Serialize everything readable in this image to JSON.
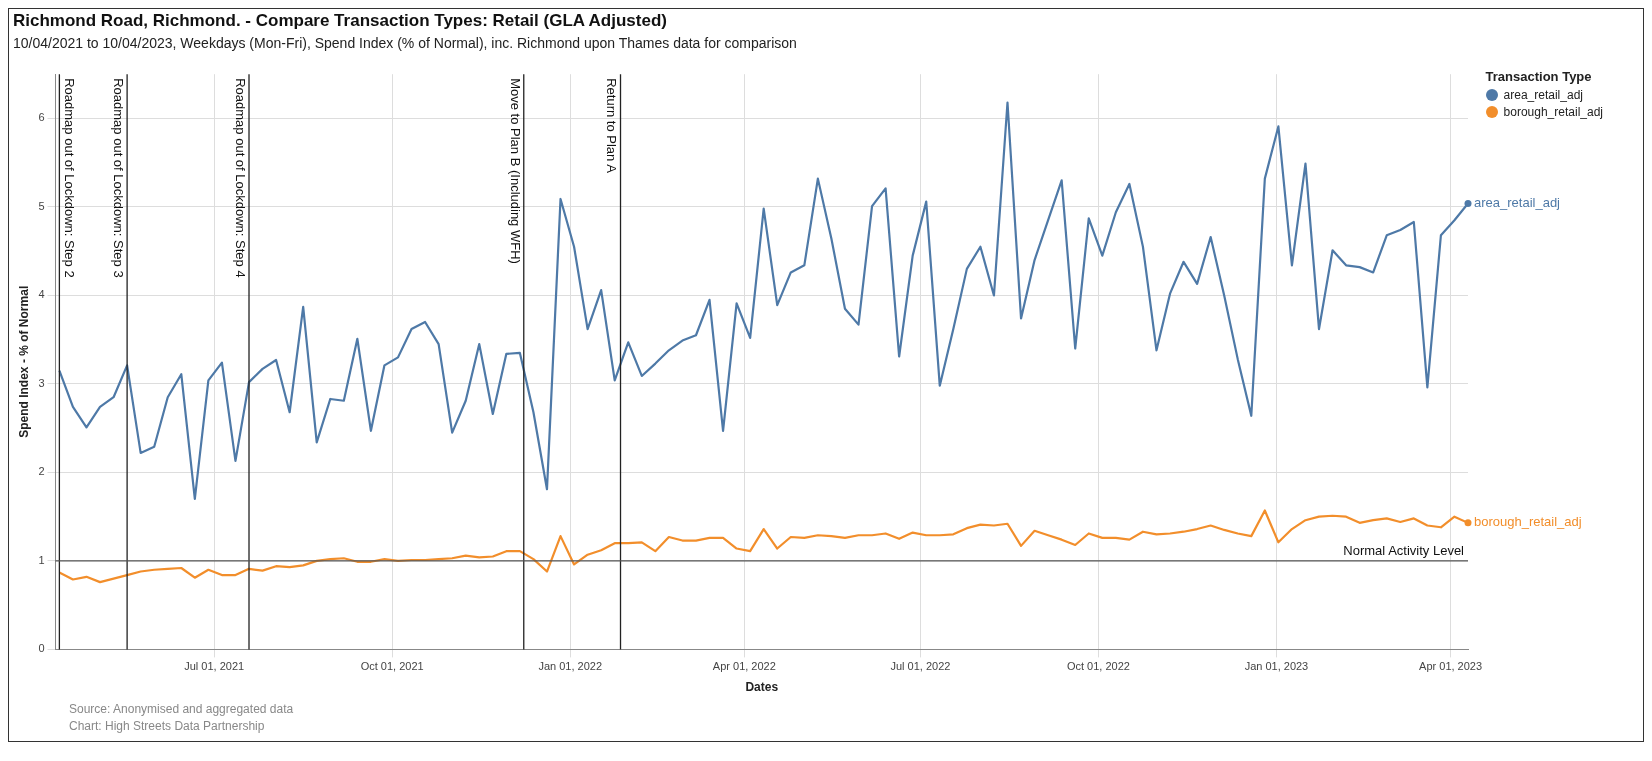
{
  "chart_data": {
    "type": "line",
    "title": "Richmond Road, Richmond. - Compare Transaction Types: Retail (GLA Adjusted)",
    "subtitle": "10/04/2021 to 10/04/2023, Weekdays (Mon-Fri), Spend Index (% of Normal), inc. Richmond upon Thames data for comparison",
    "xlabel": "Dates",
    "ylabel": "Spend Index - % of Normal",
    "legend_title": "Transaction Type",
    "annotations": [
      "Source: Anonymised and aggregated data",
      "Chart: High Streets Data Partnership"
    ],
    "x": [
      "2021-04-12",
      "2021-04-19",
      "2021-04-26",
      "2021-05-03",
      "2021-05-10",
      "2021-05-17",
      "2021-05-24",
      "2021-05-31",
      "2021-06-07",
      "2021-06-14",
      "2021-06-21",
      "2021-06-28",
      "2021-07-05",
      "2021-07-12",
      "2021-07-19",
      "2021-07-26",
      "2021-08-02",
      "2021-08-09",
      "2021-08-16",
      "2021-08-23",
      "2021-08-30",
      "2021-09-06",
      "2021-09-13",
      "2021-09-20",
      "2021-09-27",
      "2021-10-04",
      "2021-10-11",
      "2021-10-18",
      "2021-10-25",
      "2021-11-01",
      "2021-11-08",
      "2021-11-15",
      "2021-11-22",
      "2021-11-29",
      "2021-12-06",
      "2021-12-13",
      "2021-12-20",
      "2021-12-27",
      "2022-01-03",
      "2022-01-10",
      "2022-01-17",
      "2022-01-24",
      "2022-01-31",
      "2022-02-07",
      "2022-02-14",
      "2022-02-21",
      "2022-02-28",
      "2022-03-07",
      "2022-03-14",
      "2022-03-21",
      "2022-03-28",
      "2022-04-04",
      "2022-04-11",
      "2022-04-18",
      "2022-04-25",
      "2022-05-02",
      "2022-05-09",
      "2022-05-16",
      "2022-05-23",
      "2022-05-30",
      "2022-06-06",
      "2022-06-13",
      "2022-06-20",
      "2022-06-27",
      "2022-07-04",
      "2022-07-11",
      "2022-07-18",
      "2022-07-25",
      "2022-08-01",
      "2022-08-08",
      "2022-08-15",
      "2022-08-22",
      "2022-08-29",
      "2022-09-05",
      "2022-09-12",
      "2022-09-19",
      "2022-09-26",
      "2022-10-03",
      "2022-10-10",
      "2022-10-17",
      "2022-10-24",
      "2022-10-31",
      "2022-11-07",
      "2022-11-14",
      "2022-11-21",
      "2022-11-28",
      "2022-12-05",
      "2022-12-12",
      "2022-12-19",
      "2022-12-26",
      "2023-01-02",
      "2023-01-09",
      "2023-01-16",
      "2023-01-23",
      "2023-01-30",
      "2023-02-06",
      "2023-02-13",
      "2023-02-20",
      "2023-02-27",
      "2023-03-06",
      "2023-03-13",
      "2023-03-20",
      "2023-03-27",
      "2023-04-03",
      "2023-04-10"
    ],
    "series": [
      {
        "name": "area_retail_adj",
        "color": "#4e79a7",
        "values": [
          3.15,
          2.74,
          2.51,
          2.74,
          2.85,
          3.21,
          2.22,
          2.29,
          2.85,
          3.11,
          1.7,
          3.04,
          3.24,
          2.13,
          3.02,
          3.17,
          3.27,
          2.68,
          3.87,
          2.34,
          2.83,
          2.81,
          3.51,
          2.47,
          3.21,
          3.3,
          3.62,
          3.7,
          3.45,
          2.45,
          2.81,
          3.45,
          2.66,
          3.34,
          3.35,
          2.68,
          1.81,
          5.09,
          4.55,
          3.62,
          4.06,
          3.04,
          3.47,
          3.09,
          3.23,
          3.38,
          3.49,
          3.55,
          3.95,
          2.47,
          3.91,
          3.52,
          4.98,
          3.89,
          4.26,
          4.34,
          5.32,
          4.64,
          3.85,
          3.67,
          5.01,
          5.21,
          3.31,
          4.45,
          5.06,
          2.98,
          3.62,
          4.3,
          4.55,
          4.0,
          6.18,
          3.74,
          4.4,
          4.85,
          5.3,
          3.4,
          4.87,
          4.45,
          4.94,
          5.26,
          4.55,
          3.38,
          4.02,
          4.38,
          4.13,
          4.66,
          4.0,
          3.28,
          2.64,
          5.32,
          5.91,
          4.34,
          5.49,
          3.62,
          4.51,
          4.34,
          4.32,
          4.26,
          4.68,
          4.74,
          4.83,
          2.96,
          4.68,
          4.85,
          5.04
        ]
      },
      {
        "name": "borough_retail_adj",
        "color": "#f28e2b",
        "values": [
          0.87,
          0.79,
          0.82,
          0.76,
          0.8,
          0.84,
          0.88,
          0.9,
          0.91,
          0.92,
          0.81,
          0.9,
          0.84,
          0.84,
          0.91,
          0.89,
          0.94,
          0.93,
          0.95,
          1.0,
          1.02,
          1.03,
          0.99,
          0.99,
          1.02,
          1.0,
          1.01,
          1.01,
          1.02,
          1.03,
          1.06,
          1.04,
          1.05,
          1.11,
          1.11,
          1.02,
          0.88,
          1.28,
          0.96,
          1.07,
          1.12,
          1.2,
          1.2,
          1.21,
          1.11,
          1.27,
          1.23,
          1.23,
          1.26,
          1.26,
          1.14,
          1.11,
          1.36,
          1.14,
          1.27,
          1.26,
          1.29,
          1.28,
          1.26,
          1.29,
          1.29,
          1.31,
          1.25,
          1.32,
          1.29,
          1.29,
          1.3,
          1.37,
          1.41,
          1.4,
          1.42,
          1.17,
          1.34,
          1.29,
          1.24,
          1.18,
          1.31,
          1.26,
          1.26,
          1.24,
          1.33,
          1.3,
          1.31,
          1.33,
          1.36,
          1.4,
          1.35,
          1.31,
          1.28,
          1.57,
          1.21,
          1.36,
          1.46,
          1.5,
          1.51,
          1.5,
          1.43,
          1.46,
          1.48,
          1.44,
          1.48,
          1.4,
          1.38,
          1.5,
          1.43
        ]
      }
    ],
    "xlim": [
      "2021-04-10",
      "2023-04-10"
    ],
    "xticks": [
      {
        "value": "2021-07-01",
        "label": "Jul 01, 2021"
      },
      {
        "value": "2021-10-01",
        "label": "Oct 01, 2021"
      },
      {
        "value": "2022-01-01",
        "label": "Jan 01, 2022"
      },
      {
        "value": "2022-04-01",
        "label": "Apr 01, 2022"
      },
      {
        "value": "2022-07-01",
        "label": "Jul 01, 2022"
      },
      {
        "value": "2022-10-01",
        "label": "Oct 01, 2022"
      },
      {
        "value": "2023-01-01",
        "label": "Jan 01, 2023"
      },
      {
        "value": "2023-04-01",
        "label": "Apr 01, 2023"
      }
    ],
    "ylim": [
      0,
      6.5
    ],
    "yticks": [
      0,
      1,
      2,
      3,
      4,
      5,
      6
    ],
    "ref_lines": [
      {
        "axis": "x",
        "value": "2021-04-12",
        "label": "Roadmap out of Lockdown: Step 2",
        "color": "#222222"
      },
      {
        "axis": "x",
        "value": "2021-05-17",
        "label": "Roadmap out of Lockdown: Step 3",
        "color": "#222222"
      },
      {
        "axis": "x",
        "value": "2021-07-19",
        "label": "Roadmap out of Lockdown: Step 4",
        "color": "#222222"
      },
      {
        "axis": "x",
        "value": "2021-12-08",
        "label": "Move to Plan B (Including WFH)",
        "color": "#222222"
      },
      {
        "axis": "x",
        "value": "2022-01-27",
        "label": "Return to Plan A",
        "color": "#222222"
      },
      {
        "axis": "y",
        "value": 1,
        "label": "Normal Activity Level",
        "color": "#555555"
      }
    ],
    "grid": true,
    "legend": "top right",
    "marker": "none",
    "line_style": "solid"
  }
}
